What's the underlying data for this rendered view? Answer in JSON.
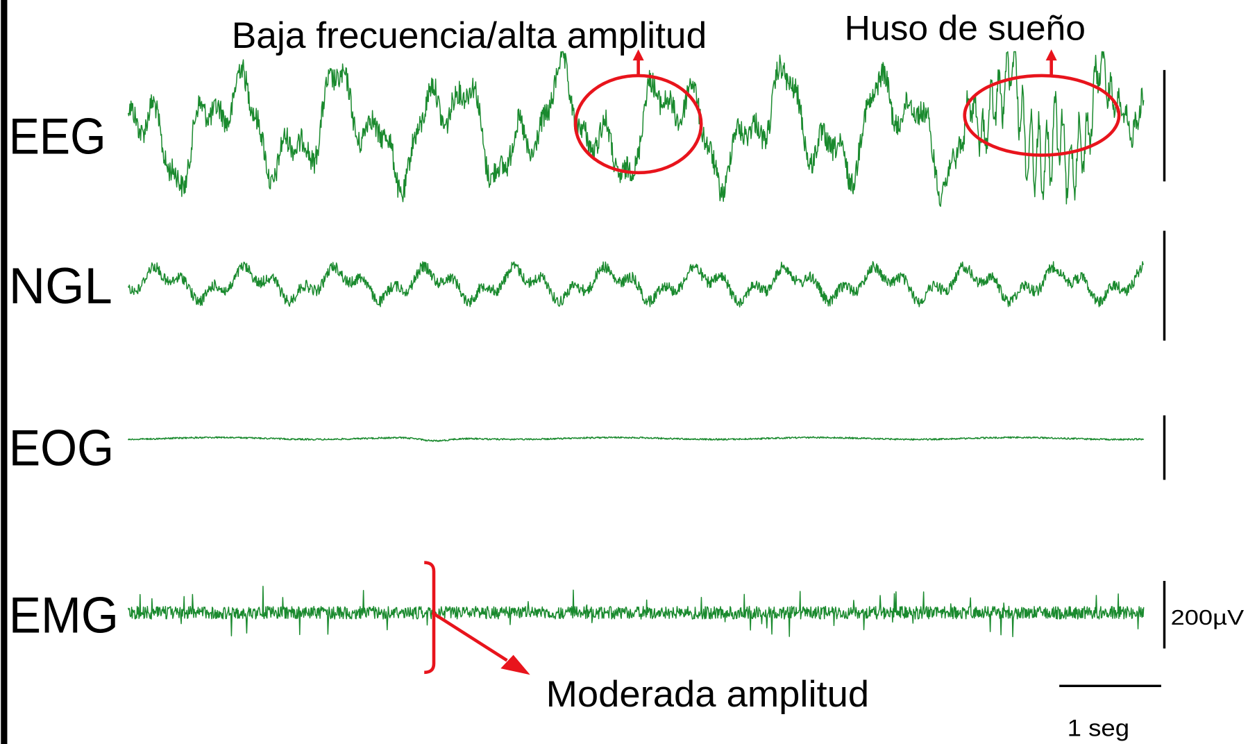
{
  "channels": [
    "EEG",
    "NGL",
    "EOG",
    "EMG"
  ],
  "annotations": {
    "low_freq": "Baja frecuencia/alta amplitud",
    "spindle": "Huso de sueño",
    "moderate": "Moderada amplitud"
  },
  "scale": {
    "amplitude": "200µV",
    "time": "1 seg"
  }
}
